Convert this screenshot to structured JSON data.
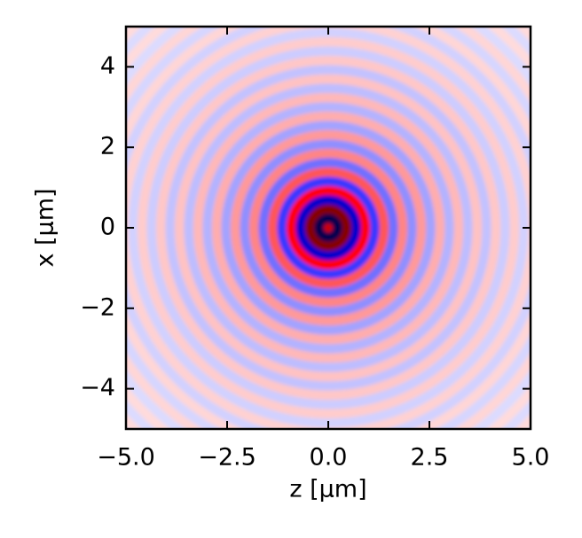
{
  "chart_data": {
    "type": "radial-field",
    "xlabel": "z [µm]",
    "ylabel": "x [µm]",
    "xlim": [
      -5,
      5
    ],
    "ylim": [
      -5,
      5
    ],
    "xticks": [
      {
        "value": -5,
        "label": "−5.0"
      },
      {
        "value": -2.5,
        "label": "−2.5"
      },
      {
        "value": 0,
        "label": "0.0"
      },
      {
        "value": 2.5,
        "label": "2.5"
      },
      {
        "value": 5,
        "label": "5.0"
      }
    ],
    "yticks": [
      {
        "value": -4,
        "label": "−4"
      },
      {
        "value": -2,
        "label": "−2"
      },
      0,
      2,
      4
    ],
    "colormap": "seismic",
    "clim": [
      -1,
      1
    ],
    "r": [
      0,
      0.23,
      0.46,
      0.69,
      0.92,
      1.15,
      1.38,
      1.61,
      1.84,
      2.07,
      2.3,
      2.53,
      2.76,
      2.99,
      3.22,
      3.45,
      3.68,
      3.91,
      4.14,
      4.37,
      4.6,
      4.83,
      5.06,
      5.29,
      5.52,
      5.75,
      5.98,
      6.21,
      6.44,
      6.67,
      6.9,
      7.13
    ],
    "values": [
      0.7,
      -1,
      0.98,
      -0.65,
      0.49,
      -0.39,
      0.33,
      -0.28,
      0.24,
      -0.22,
      0.2,
      -0.18,
      0.16,
      -0.15,
      0.14,
      -0.13,
      0.12,
      -0.12,
      0.11,
      -0.1,
      0.1,
      -0.09,
      0.09,
      -0.09,
      0.08,
      -0.08,
      0.08,
      -0.07,
      0.07,
      -0.07,
      0.07,
      -0.06
    ]
  }
}
